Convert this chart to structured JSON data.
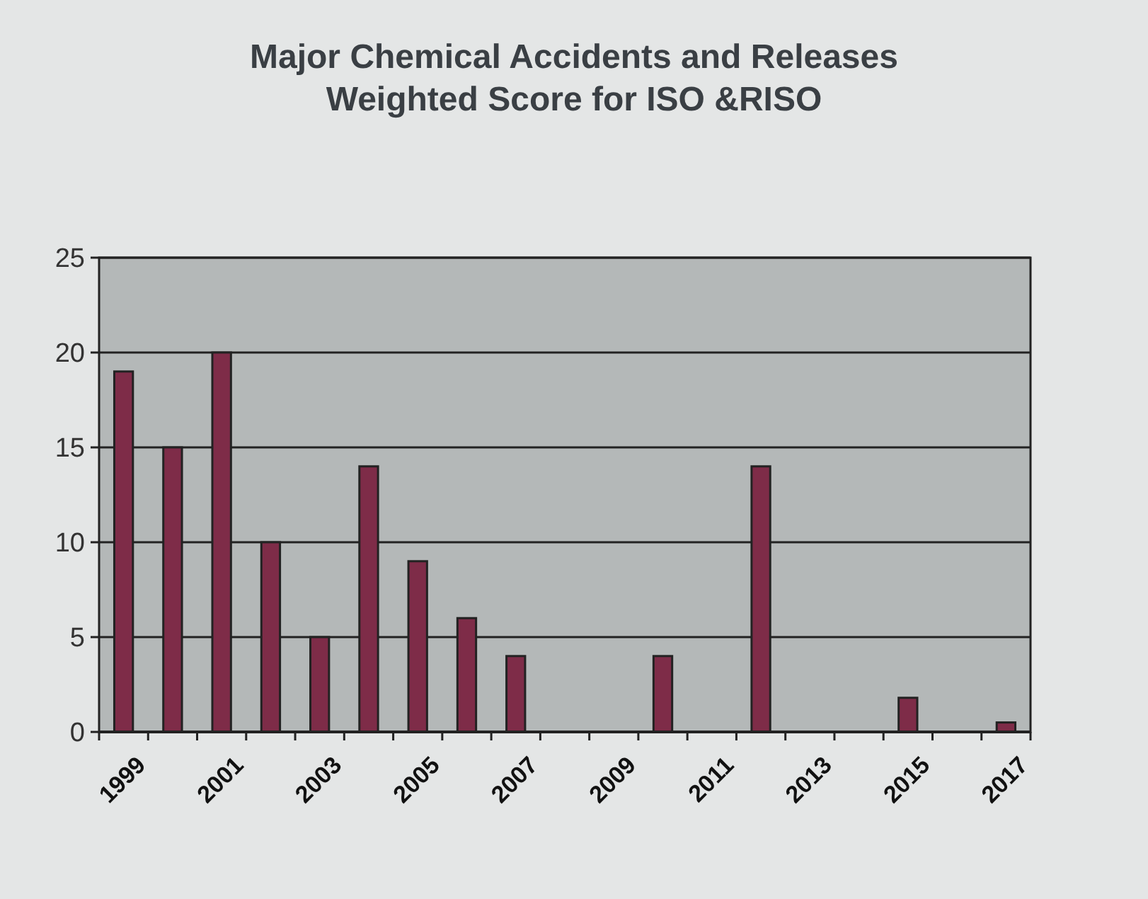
{
  "chart_data": {
    "type": "bar",
    "title": "Major Chemical Accidents and Releases\nWeighted Score for ISO &RISO",
    "categories": [
      "1999",
      null,
      "2001",
      null,
      "2003",
      null,
      "2005",
      null,
      "2007",
      null,
      "2009",
      null,
      "2011",
      null,
      "2013",
      null,
      "2015",
      null,
      "2017"
    ],
    "values": [
      19,
      15,
      20,
      10,
      5,
      14,
      9,
      6,
      4,
      0,
      0,
      4,
      0,
      14,
      0,
      0,
      1.8,
      0,
      0.5
    ],
    "color": "#7e2c48",
    "ylim": [
      0,
      25
    ],
    "yticks": [
      0,
      5,
      10,
      15,
      20,
      25
    ],
    "grid": "y"
  }
}
